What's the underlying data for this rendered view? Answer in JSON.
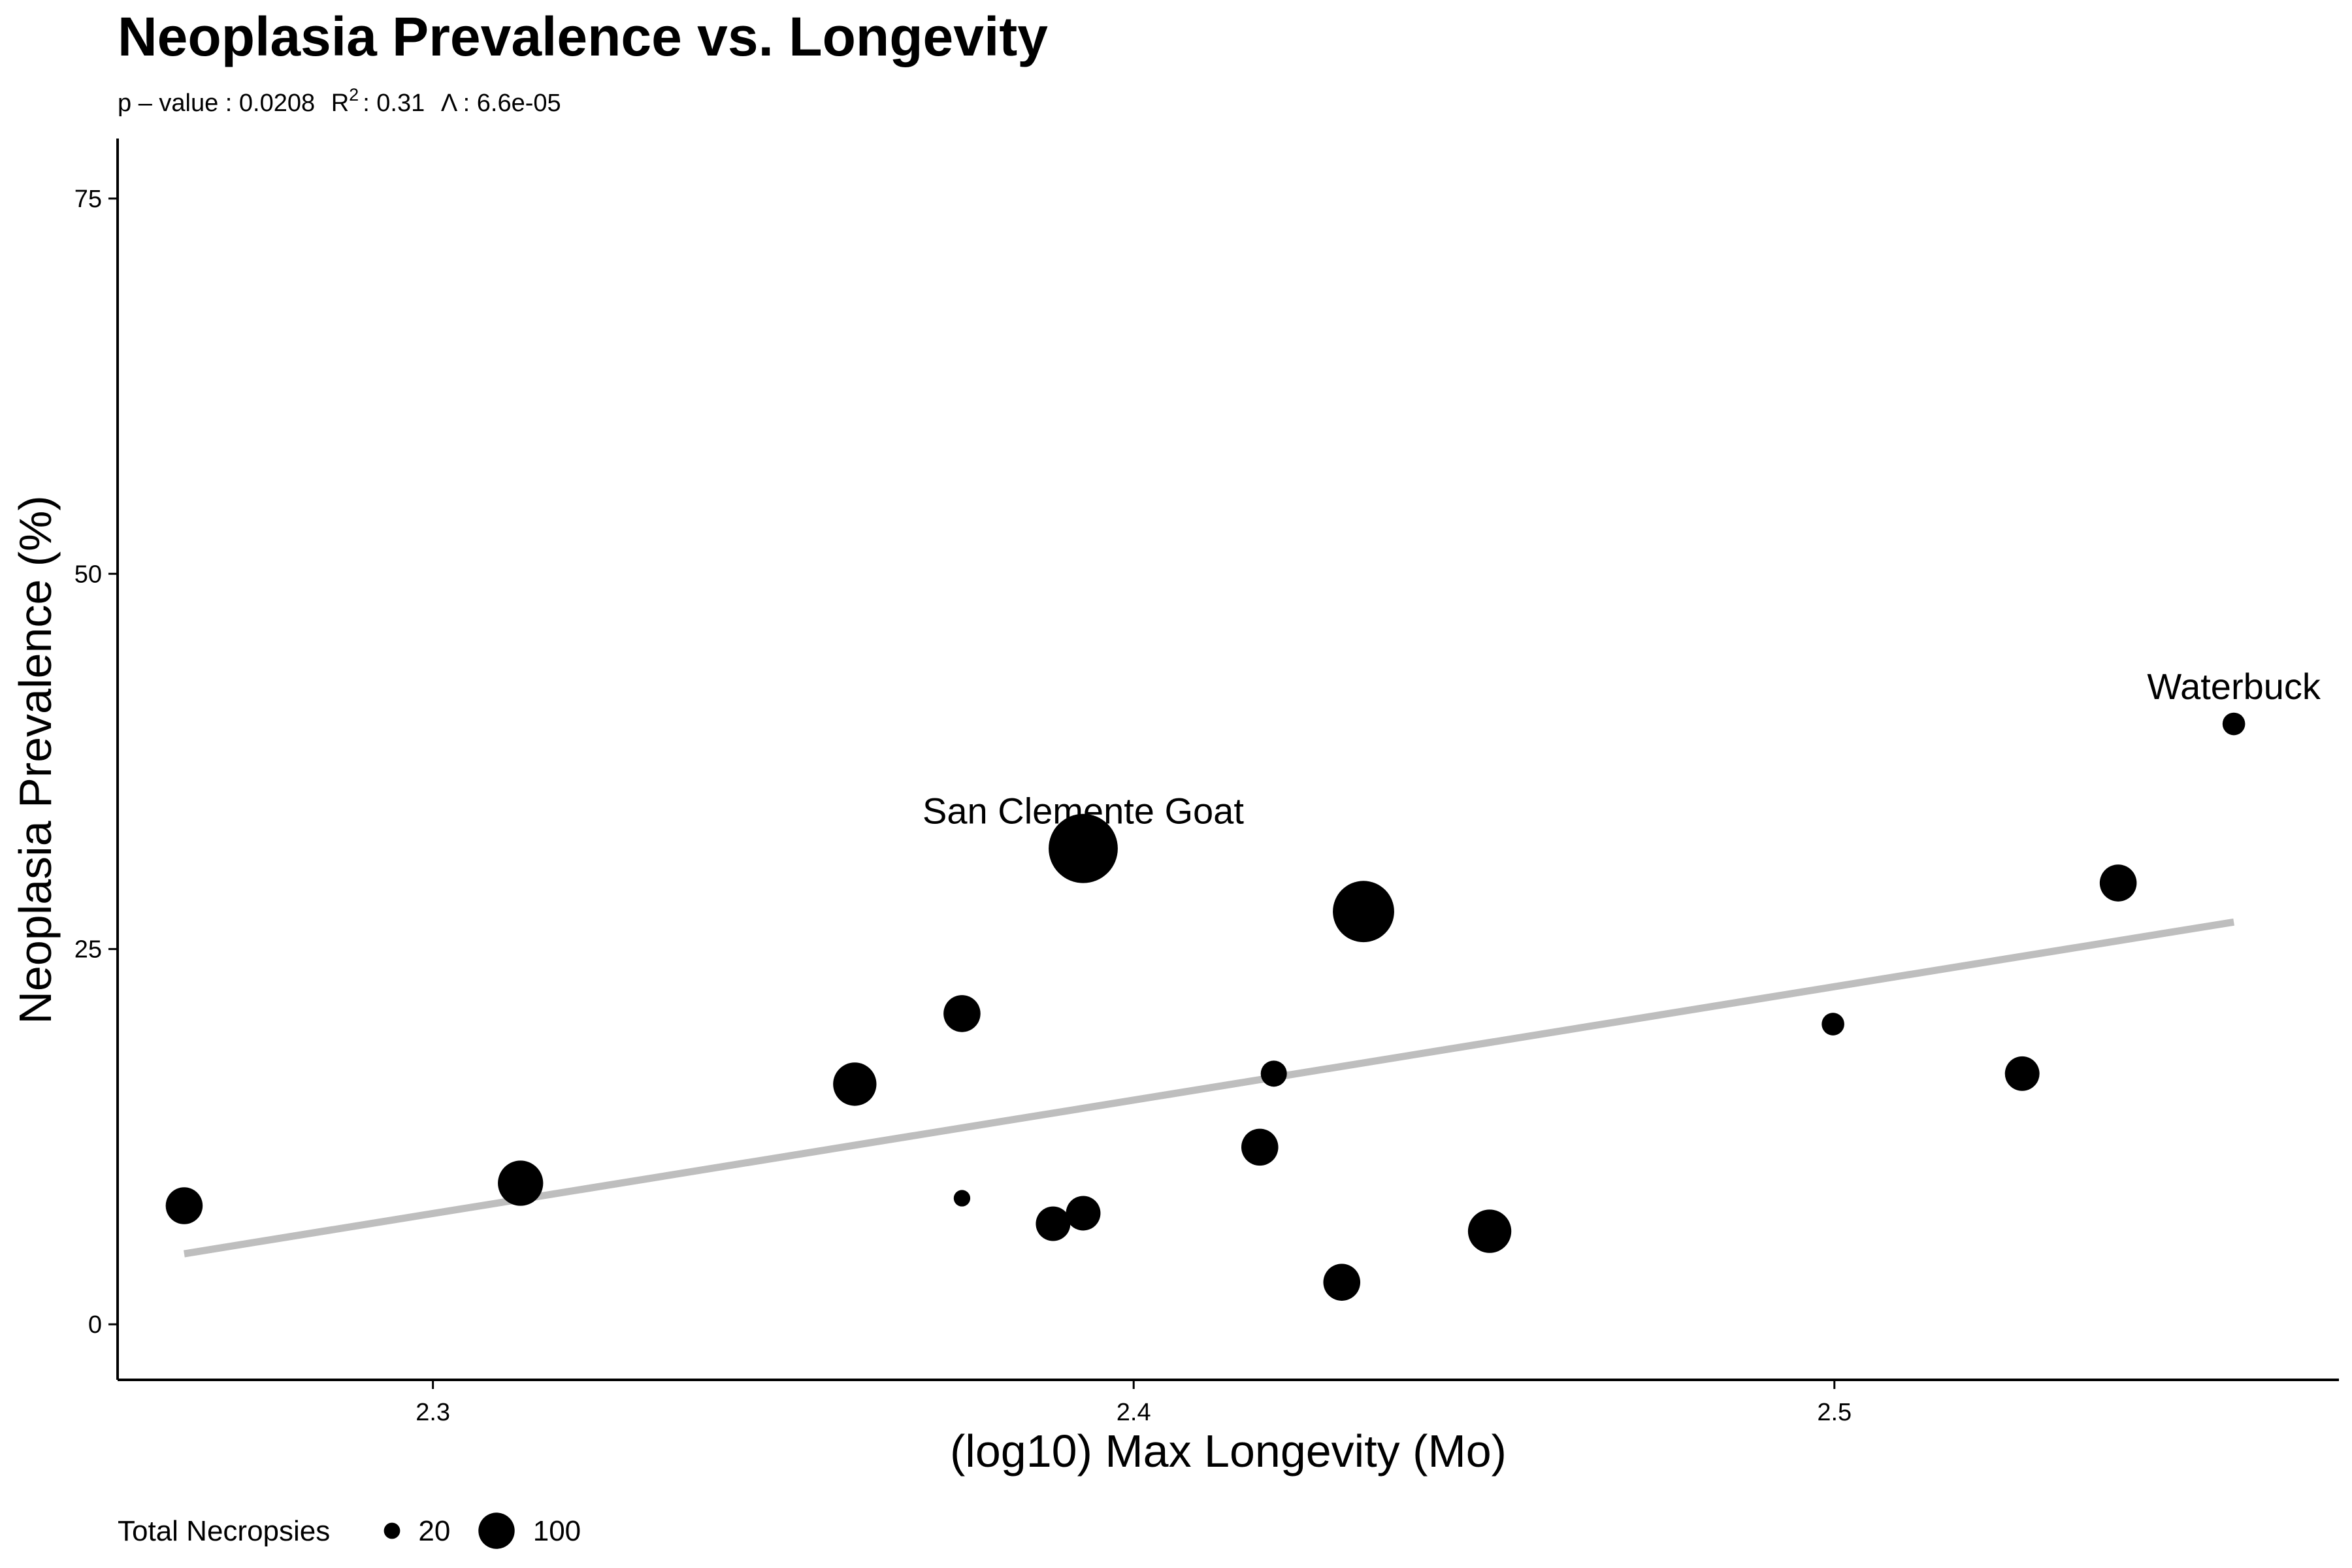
{
  "chart_data": {
    "type": "scatter",
    "title": "Neoplasia Prevalence vs. Longevity",
    "subtitle": {
      "p_label": "p – value : 0.0208",
      "r_prefix": "R",
      "r_sup": "2",
      "r_value": ": 0.31",
      "lambda": "Λ : 6.6e-05"
    },
    "xlabel": "(log10) Max Longevity (Mo)",
    "ylabel": "Neoplasia Prevalence (%)",
    "xlim": [
      2.255,
      2.572
    ],
    "ylim": [
      -3.7,
      79
    ],
    "xticks": [
      2.3,
      2.4,
      2.5
    ],
    "xtick_labels": [
      "2.3",
      "2.4",
      "2.5"
    ],
    "yticks": [
      0,
      25,
      50,
      75
    ],
    "ytick_labels": [
      "0",
      "25",
      "50",
      "75"
    ],
    "grid": false,
    "points": [
      {
        "x": 2.2645,
        "y": 7.9,
        "n": 40
      },
      {
        "x": 2.3125,
        "y": 9.4,
        "n": 60
      },
      {
        "x": 2.3602,
        "y": 16.0,
        "n": 55
      },
      {
        "x": 2.3755,
        "y": 20.7,
        "n": 40
      },
      {
        "x": 2.3755,
        "y": 8.4,
        "n": 8
      },
      {
        "x": 2.3885,
        "y": 6.7,
        "n": 35
      },
      {
        "x": 2.3928,
        "y": 7.4,
        "n": 35
      },
      {
        "x": 2.3928,
        "y": 31.7,
        "n": 140
      },
      {
        "x": 2.418,
        "y": 11.8,
        "n": 40
      },
      {
        "x": 2.42,
        "y": 16.7,
        "n": 20
      },
      {
        "x": 2.4297,
        "y": 2.8,
        "n": 40
      },
      {
        "x": 2.4328,
        "y": 27.5,
        "n": 110
      },
      {
        "x": 2.4508,
        "y": 6.2,
        "n": 55
      },
      {
        "x": 2.4998,
        "y": 20.0,
        "n": 15
      },
      {
        "x": 2.5268,
        "y": 16.7,
        "n": 35
      },
      {
        "x": 2.5405,
        "y": 29.4,
        "n": 40
      },
      {
        "x": 2.557,
        "y": 40.0,
        "n": 15
      }
    ],
    "point_color": "#000000",
    "trend_line": {
      "x": [
        2.2645,
        2.557
      ],
      "y": [
        4.7,
        26.8
      ],
      "color": "#bebebe"
    },
    "annotations": [
      {
        "text": "San Clemente Goat",
        "x": 2.3928,
        "y": 31.7
      },
      {
        "text": "Waterbuck",
        "x": 2.557,
        "y": 40.0
      }
    ],
    "legend": {
      "title": "Total Necropsies",
      "placement": "bottom-left",
      "entries": [
        {
          "label": "20",
          "n": 20
        },
        {
          "label": "100",
          "n": 100
        }
      ]
    }
  }
}
